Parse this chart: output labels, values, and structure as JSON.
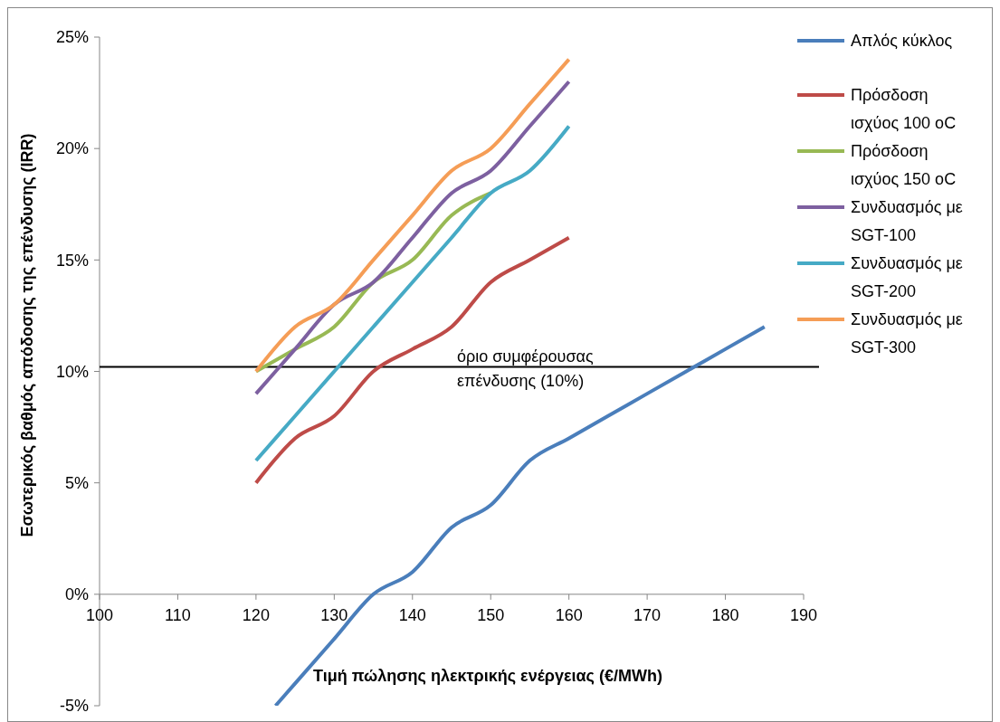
{
  "chart_data": {
    "type": "line",
    "xlabel": "Τιμή πώλησης ηλεκτρικής ενέργειας (€/MWh)",
    "ylabel": "Εσωτερικός βαθμός απόδοσης της επένδυσης (IRR)",
    "xlim": [
      100,
      190
    ],
    "xticks": [
      100,
      110,
      120,
      130,
      140,
      150,
      160,
      170,
      180,
      190
    ],
    "ylim": [
      -5,
      25
    ],
    "yticks": [
      {
        "value": -5,
        "label": "-5%"
      },
      {
        "value": 0,
        "label": "0%"
      },
      {
        "value": 5,
        "label": "5%"
      },
      {
        "value": 10,
        "label": "10%"
      },
      {
        "value": 15,
        "label": "15%"
      },
      {
        "value": 20,
        "label": "20%"
      },
      {
        "value": 25,
        "label": "25%"
      }
    ],
    "legend": "right",
    "grid": false,
    "marker": "none",
    "line_style": "solid",
    "series": [
      {
        "name": "Απλός κύκλος",
        "color": "#4a7ebb",
        "x": [
          122.5,
          125,
          130,
          135,
          140,
          145,
          150,
          155,
          160,
          165,
          170,
          175,
          180,
          185
        ],
        "values": [
          -5,
          -4,
          -2,
          0,
          1,
          3,
          4,
          6,
          7,
          8,
          9,
          10,
          11,
          12
        ]
      },
      {
        "name": "Πρόσδοση ισχύος 100 oC",
        "color": "#be4b48",
        "x": [
          120,
          125,
          130,
          135,
          140,
          145,
          150,
          155,
          160
        ],
        "values": [
          5,
          7,
          8,
          10,
          11,
          12,
          14,
          15,
          16
        ]
      },
      {
        "name": "Πρόσδοση ισχύος 150 oC",
        "color": "#98b954",
        "x": [
          120,
          125,
          130,
          135,
          140,
          145,
          150
        ],
        "values": [
          10,
          11,
          12,
          14,
          15,
          17,
          18
        ]
      },
      {
        "name": "Συνδυασμός με SGT-100",
        "color": "#7d60a0",
        "x": [
          120,
          125,
          130,
          135,
          140,
          145,
          150,
          155,
          160
        ],
        "values": [
          9,
          11,
          13,
          14,
          16,
          18,
          19,
          21,
          23
        ]
      },
      {
        "name": "Συνδυασμός με SGT-200",
        "color": "#46aac5",
        "x": [
          120,
          125,
          130,
          135,
          140,
          145,
          150,
          155,
          160
        ],
        "values": [
          6,
          8,
          10,
          12,
          14,
          16,
          18,
          19,
          21
        ]
      },
      {
        "name": "Συνδυασμός με SGT-300",
        "color": "#f59d56",
        "x": [
          120,
          125,
          130,
          135,
          140,
          145,
          150,
          155,
          160
        ],
        "values": [
          10,
          12,
          13,
          15,
          17,
          19,
          20,
          22,
          24
        ]
      }
    ],
    "ref_lines": [
      {
        "axis": "y",
        "value": 10.2,
        "label": "όριο συμφέρουσας επένδυσης (10%)",
        "color": "#000000"
      }
    ]
  }
}
